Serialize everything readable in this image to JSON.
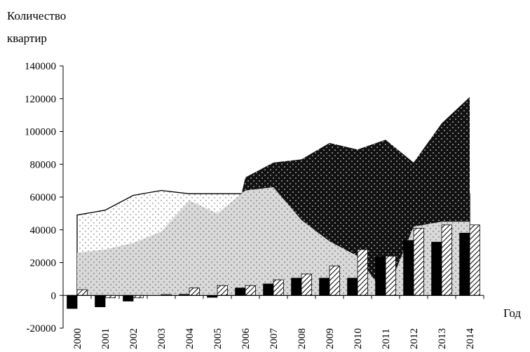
{
  "chart_data": {
    "type": "area",
    "ylabel_lines": [
      "Количество",
      "квартир"
    ],
    "xlabel": "Год",
    "ylim": [
      -20000,
      140000
    ],
    "yticks": [
      -20000,
      0,
      20000,
      40000,
      60000,
      80000,
      100000,
      120000,
      140000
    ],
    "categories": [
      "2000",
      "2001",
      "2002",
      "2003",
      "2004",
      "2005",
      "2006",
      "2007",
      "2008",
      "2009",
      "2010",
      "2011",
      "2012",
      "2013",
      "2014"
    ],
    "areas": [
      {
        "values": [
          49000,
          52000,
          61000,
          64000,
          62000,
          62000,
          62000,
          62000,
          62000,
          62000,
          62000,
          62000,
          62000,
          62000,
          62000
        ],
        "pattern": "sparse-dots"
      },
      {
        "values": [
          0,
          0,
          0,
          0,
          0,
          0,
          72000,
          81000,
          83000,
          93000,
          89000,
          95000,
          81000,
          105000,
          121000
        ],
        "pattern": "dense-dots-black"
      },
      {
        "values": [
          26000,
          28000,
          32000,
          39000,
          58000,
          50000,
          64000,
          66000,
          46000,
          33000,
          24000,
          0,
          42000,
          45000,
          45000
        ],
        "pattern": "dots-gray"
      }
    ],
    "bars": [
      {
        "values": [
          -8000,
          -7000,
          -3500,
          0,
          600,
          -1200,
          4500,
          7000,
          10500,
          10500,
          10500,
          23500,
          33500,
          32500,
          38000
        ],
        "pattern": "solid-black"
      },
      {
        "values": [
          3500,
          -1500,
          -1500,
          500,
          4500,
          6000,
          6000,
          9500,
          13000,
          18000,
          28000,
          24000,
          41000,
          43000,
          43000
        ],
        "pattern": "hatched"
      }
    ]
  }
}
